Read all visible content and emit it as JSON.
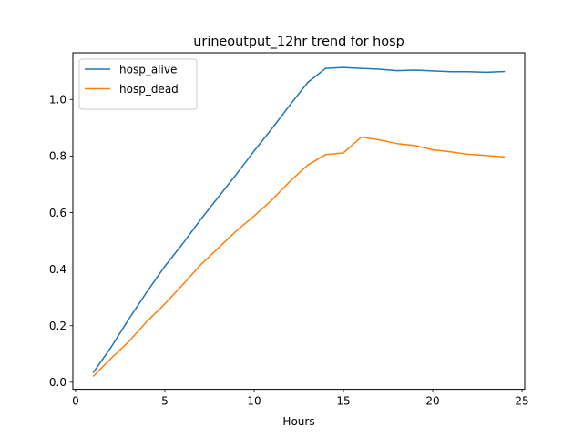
{
  "chart_data": {
    "type": "line",
    "title": "urineoutput_12hr trend for hosp",
    "xlabel": "Hours",
    "ylabel": "",
    "xlim": [
      -0.15,
      25.15
    ],
    "ylim": [
      -0.025,
      1.165
    ],
    "xticks": [
      0,
      5,
      10,
      15,
      20,
      25
    ],
    "yticks": [
      0.0,
      0.2,
      0.4,
      0.6,
      0.8,
      1.0
    ],
    "grid": false,
    "legend_position": "top-left",
    "x": [
      1,
      2,
      3,
      4,
      5,
      6,
      7,
      8,
      9,
      10,
      11,
      12,
      13,
      14,
      15,
      16,
      17,
      18,
      19,
      20,
      21,
      22,
      23,
      24
    ],
    "series": [
      {
        "name": "hosp_alive",
        "color": "#1f77b4",
        "values": [
          0.035,
          0.125,
          0.225,
          0.32,
          0.41,
          0.49,
          0.575,
          0.655,
          0.735,
          0.818,
          0.897,
          0.98,
          1.06,
          1.11,
          1.113,
          1.11,
          1.107,
          1.102,
          1.104,
          1.101,
          1.098,
          1.098,
          1.096,
          1.099
        ]
      },
      {
        "name": "hosp_dead",
        "color": "#ff7f0e",
        "values": [
          0.022,
          0.085,
          0.145,
          0.215,
          0.277,
          0.345,
          0.415,
          0.475,
          0.535,
          0.588,
          0.645,
          0.71,
          0.768,
          0.805,
          0.811,
          0.867,
          0.857,
          0.844,
          0.837,
          0.822,
          0.815,
          0.806,
          0.802,
          0.797
        ]
      }
    ]
  }
}
